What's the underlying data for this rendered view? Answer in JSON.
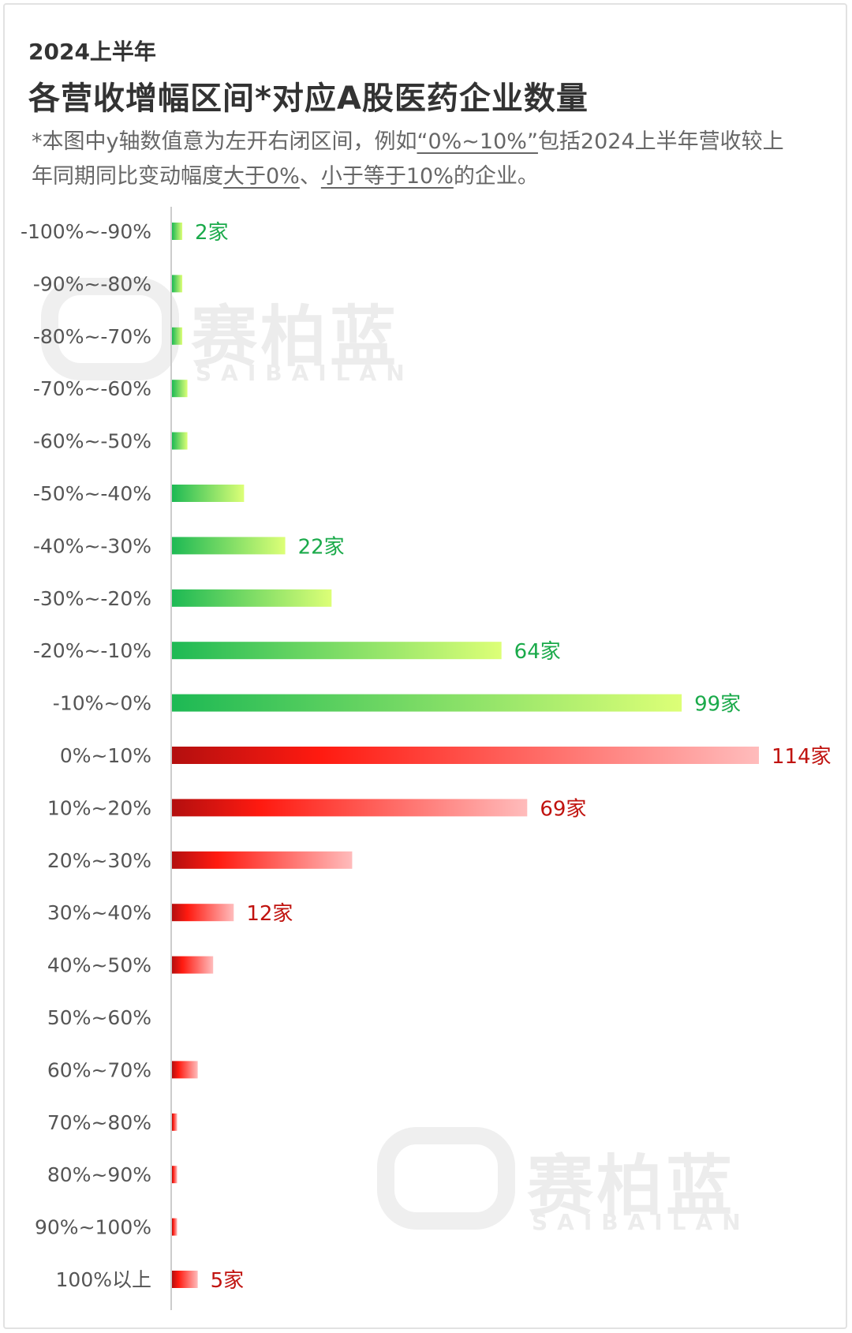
{
  "header": {
    "subtitle": "2024上半年",
    "title": "各营收增幅区间*对应A股医药企业数量",
    "note_part1": "*本图中y轴数值意为左开右闭区间，例如",
    "note_quote": "“0%~10%”",
    "note_part2": "包括2024上半年营收较上年同期同比变动幅度",
    "note_u1": "大于0%",
    "note_sep": "、",
    "note_u2": "小于等于10%",
    "note_end": "的企业。"
  },
  "watermark": {
    "text": "赛柏蓝",
    "sub": "SAIBAILAN"
  },
  "colors": {
    "green_dark": "#1db954",
    "green_light": "#ddff77",
    "red_dark": "#b30f0f",
    "red_mid": "#ff1a10",
    "red_light": "#ffbcbc",
    "green_text": "#1aaa4a",
    "red_text": "#c0130f"
  },
  "chart_data": {
    "type": "bar",
    "orientation": "horizontal",
    "unit": "家",
    "categories": [
      "-100%~-90%",
      "-90%~-80%",
      "-80%~-70%",
      "-70%~-60%",
      "-60%~-50%",
      "-50%~-40%",
      "-40%~-30%",
      "-30%~-20%",
      "-20%~-10%",
      "-10%~0%",
      "0%~10%",
      "10%~20%",
      "20%~30%",
      "30%~40%",
      "40%~50%",
      "50%~60%",
      "60%~70%",
      "70%~80%",
      "80%~90%",
      "90%~100%",
      "100%以上"
    ],
    "values": [
      2,
      2,
      2,
      3,
      3,
      14,
      22,
      31,
      64,
      99,
      114,
      69,
      35,
      12,
      8,
      0,
      5,
      1,
      1,
      1,
      5
    ],
    "labels": [
      "2家",
      "",
      "",
      "",
      "",
      "",
      "22家",
      "",
      "64家",
      "99家",
      "114家",
      "69家",
      "",
      "12家",
      "",
      "",
      "",
      "",
      "",
      "",
      "5家"
    ],
    "groups": [
      "negative",
      "negative",
      "negative",
      "negative",
      "negative",
      "negative",
      "negative",
      "negative",
      "negative",
      "negative",
      "positive",
      "positive",
      "positive",
      "positive",
      "positive",
      "positive",
      "positive",
      "positive",
      "positive",
      "positive",
      "positive"
    ],
    "xlim": [
      0,
      114
    ]
  }
}
